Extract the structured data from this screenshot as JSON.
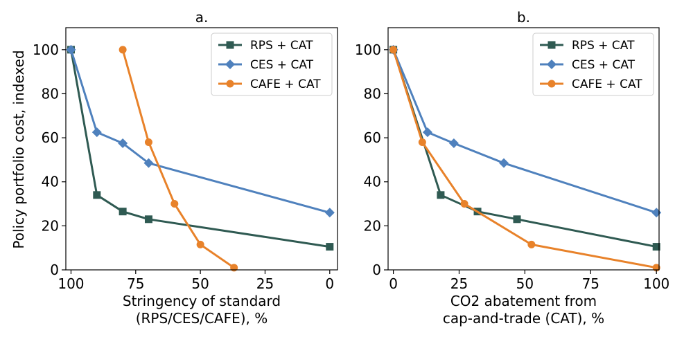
{
  "colors": {
    "rps": "#2f5a52",
    "ces": "#4f81bd",
    "cafe": "#e8822a"
  },
  "chart_data": [
    {
      "type": "line",
      "title": "a.",
      "xlabel_line1": "Stringency of standard",
      "xlabel_line2": "(RPS/CES/CAFE), %",
      "ylabel": "Policy portfolio cost, indexed",
      "xlim": [
        102,
        -3
      ],
      "ylim": [
        0,
        110
      ],
      "x_ticks": [
        100,
        75,
        50,
        25,
        0
      ],
      "y_ticks": [
        0,
        20,
        40,
        60,
        80,
        100
      ],
      "legend_position": "top-right",
      "series": [
        {
          "name": "RPS + CAT",
          "key": "rps",
          "marker": "square",
          "x": [
            100,
            90,
            80,
            70,
            0
          ],
          "y": [
            100,
            34,
            26.5,
            23,
            10.5
          ]
        },
        {
          "name": "CES + CAT",
          "key": "ces",
          "marker": "diamond",
          "x": [
            100,
            90,
            80,
            70,
            0
          ],
          "y": [
            100,
            62.5,
            57.5,
            48.5,
            26
          ]
        },
        {
          "name": "CAFE + CAT",
          "key": "cafe",
          "marker": "circle",
          "x": [
            80,
            70,
            60,
            50,
            37
          ],
          "y": [
            100,
            58,
            30,
            11.5,
            1
          ]
        }
      ]
    },
    {
      "type": "line",
      "title": "b.",
      "xlabel_line1": "CO2 abatement from",
      "xlabel_line2": "cap-and-trade (CAT), %",
      "ylabel": "",
      "xlim": [
        -2,
        101
      ],
      "ylim": [
        0,
        110
      ],
      "x_ticks": [
        0,
        25,
        50,
        75,
        100
      ],
      "y_ticks": [
        0,
        20,
        40,
        60,
        80,
        100
      ],
      "legend_position": "top-right",
      "series": [
        {
          "name": "RPS + CAT",
          "key": "rps",
          "marker": "square",
          "x": [
            0,
            18,
            32,
            47,
            100
          ],
          "y": [
            100,
            34,
            26.5,
            23,
            10.5
          ]
        },
        {
          "name": "CES + CAT",
          "key": "ces",
          "marker": "diamond",
          "x": [
            0,
            13,
            23,
            42,
            100
          ],
          "y": [
            100,
            62.5,
            57.5,
            48.5,
            26
          ]
        },
        {
          "name": "CAFE + CAT",
          "key": "cafe",
          "marker": "circle",
          "x": [
            0,
            11,
            27,
            52.5,
            100
          ],
          "y": [
            100,
            58,
            30,
            11.5,
            1
          ]
        }
      ]
    }
  ]
}
